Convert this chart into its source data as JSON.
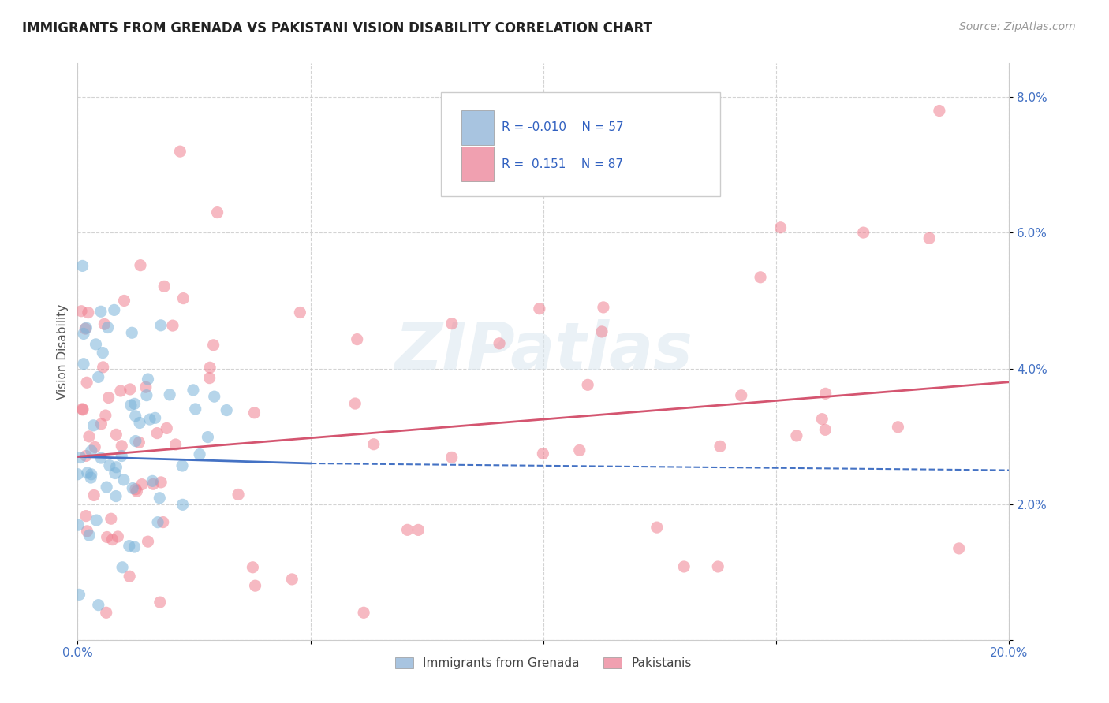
{
  "title": "IMMIGRANTS FROM GRENADA VS PAKISTANI VISION DISABILITY CORRELATION CHART",
  "source": "Source: ZipAtlas.com",
  "ylabel": "Vision Disability",
  "watermark": "ZIPatlas",
  "xlim": [
    0.0,
    0.2
  ],
  "ylim": [
    0.0,
    0.085
  ],
  "xticks": [
    0.0,
    0.05,
    0.1,
    0.15,
    0.2
  ],
  "xticklabels": [
    "0.0%",
    "",
    "",
    "",
    "20.0%"
  ],
  "yticks": [
    0.0,
    0.02,
    0.04,
    0.06,
    0.08
  ],
  "yticklabels": [
    "",
    "2.0%",
    "4.0%",
    "6.0%",
    "8.0%"
  ],
  "legend_entries": [
    {
      "label": "Immigrants from Grenada",
      "color": "#a8c4e0",
      "R": "-0.010",
      "N": "57"
    },
    {
      "label": "Pakistanis",
      "color": "#f0a0b0",
      "R": "0.151",
      "N": "87"
    }
  ],
  "blue_line_y_start": 0.027,
  "blue_line_y_end": 0.025,
  "pink_line_y_start": 0.027,
  "pink_line_y_end": 0.038,
  "scatter_size": 120,
  "scatter_alpha": 0.55,
  "blue_scatter_color": "#7ab3d9",
  "pink_scatter_color": "#f08090",
  "blue_line_color": "#4472c4",
  "pink_line_color": "#d45570",
  "grid_color": "#c8c8c8",
  "background_color": "#ffffff",
  "title_fontsize": 12,
  "label_fontsize": 11,
  "tick_fontsize": 11,
  "tick_color": "#4472c4"
}
